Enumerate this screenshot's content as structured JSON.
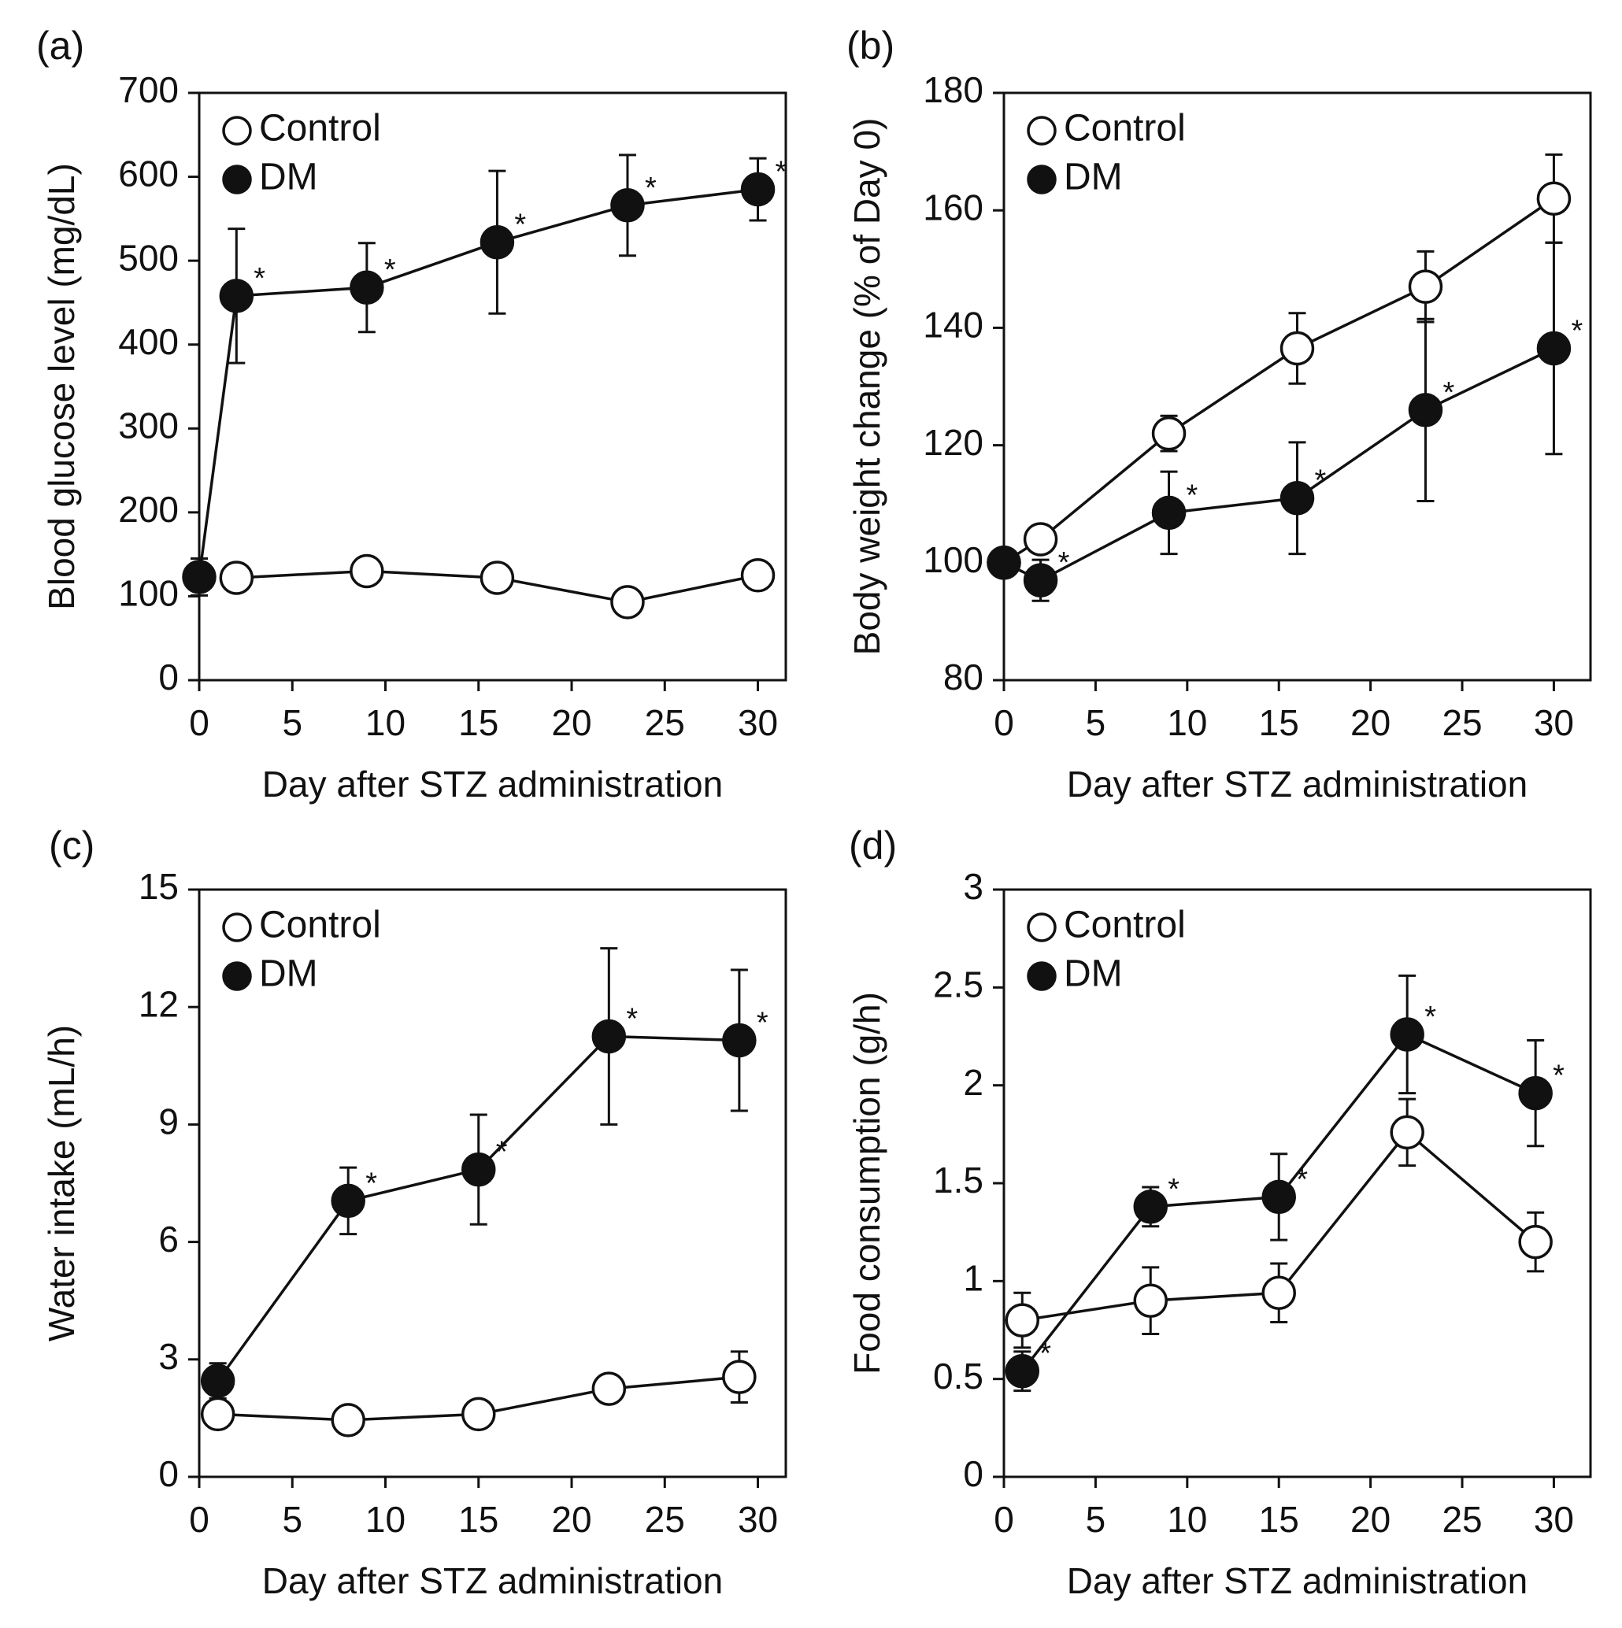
{
  "chart_data": [
    {
      "panel": "(a)",
      "type": "line",
      "ylabel": "Blood glucose level (mg/dL)",
      "xlabel": "Day after STZ administration",
      "xlim": [
        0,
        31.5
      ],
      "ylim": [
        0,
        700
      ],
      "xticks": [
        "0",
        "5",
        "10",
        "15",
        "20",
        "25",
        "30"
      ],
      "xtick_values": [
        0,
        5,
        10,
        15,
        20,
        25,
        30
      ],
      "yticks": [
        "0",
        "100",
        "200",
        "300",
        "400",
        "500",
        "600",
        "700"
      ],
      "ytick_values": [
        0,
        100,
        200,
        300,
        400,
        500,
        600,
        700
      ],
      "legend": [
        "Control",
        "DM"
      ],
      "series": [
        {
          "name": "Control",
          "marker": "open",
          "x": [
            2,
            9,
            16,
            23,
            30
          ],
          "y": [
            122,
            130,
            122,
            93,
            125
          ],
          "err": [
            5,
            5,
            12,
            5,
            5
          ],
          "sig": [
            false,
            false,
            false,
            false,
            false
          ]
        },
        {
          "name": "DM",
          "marker": "filled",
          "x": [
            0,
            2,
            9,
            16,
            23,
            30
          ],
          "y": [
            123,
            458,
            468,
            522,
            566,
            585
          ],
          "err": [
            22,
            80,
            53,
            85,
            60,
            37
          ],
          "sig": [
            false,
            true,
            true,
            true,
            true,
            true
          ]
        }
      ],
      "sig_label": "*"
    },
    {
      "panel": "(b)",
      "type": "line",
      "ylabel": "Body weight change (% of Day 0)",
      "xlabel": "Day after STZ administration",
      "xlim": [
        0,
        32
      ],
      "ylim": [
        80,
        180
      ],
      "xticks": [
        "0",
        "5",
        "10",
        "15",
        "20",
        "25",
        "30"
      ],
      "xtick_values": [
        0,
        5,
        10,
        15,
        20,
        25,
        30
      ],
      "yticks": [
        "80",
        "100",
        "120",
        "140",
        "160",
        "180"
      ],
      "ytick_values": [
        80,
        100,
        120,
        140,
        160,
        180
      ],
      "legend": [
        "Control",
        "DM"
      ],
      "series": [
        {
          "name": "Control",
          "marker": "open",
          "x": [
            0,
            2,
            9,
            16,
            23,
            30
          ],
          "y": [
            100,
            104,
            122,
            136.5,
            147,
            162
          ],
          "err": [
            1,
            1.5,
            3,
            6,
            6,
            7.5
          ],
          "sig": [
            false,
            false,
            false,
            false,
            false,
            false
          ]
        },
        {
          "name": "DM",
          "marker": "filled",
          "x": [
            0,
            2,
            9,
            16,
            23,
            30
          ],
          "y": [
            100,
            97,
            108.5,
            111,
            126,
            136.5
          ],
          "err": [
            1,
            3.5,
            7,
            9.5,
            15.5,
            18
          ],
          "sig": [
            false,
            true,
            true,
            true,
            true,
            true
          ]
        }
      ],
      "sig_label": "*"
    },
    {
      "panel": "(c)",
      "type": "line",
      "ylabel": "Water intake (mL/h)",
      "xlabel": "Day after STZ administration",
      "xlim": [
        0,
        31.5
      ],
      "ylim": [
        0,
        15
      ],
      "xticks": [
        "0",
        "5",
        "10",
        "15",
        "20",
        "25",
        "30"
      ],
      "xtick_values": [
        0,
        5,
        10,
        15,
        20,
        25,
        30
      ],
      "yticks": [
        "0",
        "3",
        "6",
        "9",
        "12",
        "15"
      ],
      "ytick_values": [
        0,
        3,
        6,
        9,
        12,
        15
      ],
      "legend": [
        "Control",
        "DM"
      ],
      "series": [
        {
          "name": "Control",
          "marker": "open",
          "x": [
            1,
            8,
            15,
            22,
            29
          ],
          "y": [
            1.6,
            1.45,
            1.6,
            2.25,
            2.55
          ],
          "err": [
            0.2,
            0.2,
            0.3,
            0.2,
            0.65
          ],
          "sig": [
            false,
            false,
            false,
            false,
            false
          ]
        },
        {
          "name": "DM",
          "marker": "filled",
          "x": [
            1,
            8,
            15,
            22,
            29
          ],
          "y": [
            2.45,
            7.05,
            7.85,
            11.25,
            11.15
          ],
          "err": [
            0.45,
            0.85,
            1.4,
            2.25,
            1.8
          ],
          "sig": [
            false,
            true,
            true,
            true,
            true
          ]
        }
      ],
      "sig_label": "*"
    },
    {
      "panel": "(d)",
      "type": "line",
      "ylabel": "Food consumption (g/h)",
      "xlabel": "Day after STZ administration",
      "xlim": [
        0,
        32
      ],
      "ylim": [
        0,
        3
      ],
      "xticks": [
        "0",
        "5",
        "10",
        "15",
        "20",
        "25",
        "30"
      ],
      "xtick_values": [
        0,
        5,
        10,
        15,
        20,
        25,
        30
      ],
      "yticks": [
        "0",
        "0.5",
        "1",
        "1.5",
        "2",
        "2.5",
        "3"
      ],
      "ytick_values": [
        0,
        0.5,
        1,
        1.5,
        2,
        2.5,
        3
      ],
      "legend": [
        "Control",
        "DM"
      ],
      "series": [
        {
          "name": "Control",
          "marker": "open",
          "x": [
            1,
            8,
            15,
            22,
            29
          ],
          "y": [
            0.8,
            0.9,
            0.94,
            1.76,
            1.2
          ],
          "err": [
            0.14,
            0.17,
            0.15,
            0.17,
            0.15
          ],
          "sig": [
            false,
            false,
            false,
            false,
            false
          ]
        },
        {
          "name": "DM",
          "marker": "filled",
          "x": [
            1,
            8,
            15,
            22,
            29
          ],
          "y": [
            0.54,
            1.38,
            1.43,
            2.26,
            1.96
          ],
          "err": [
            0.1,
            0.1,
            0.22,
            0.3,
            0.27
          ],
          "sig": [
            true,
            true,
            true,
            true,
            true
          ]
        }
      ],
      "sig_label": "*"
    }
  ]
}
